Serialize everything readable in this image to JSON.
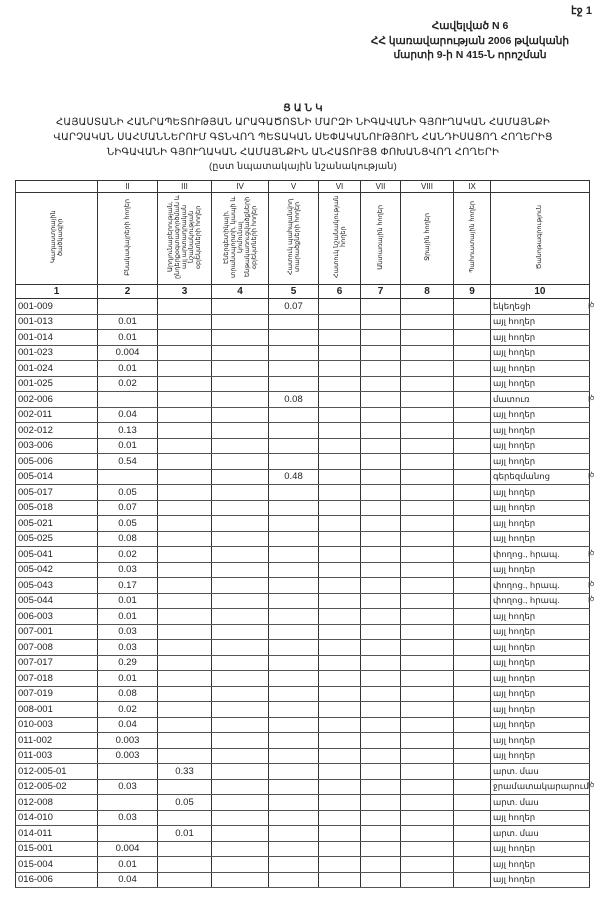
{
  "page_number": "էջ 1",
  "annex": {
    "line1": "Հավելված N 6",
    "line2": "ՀՀ կառավարության 2006 թվականի",
    "line3": "մարտի 9-ի N 415-Ն որոշման"
  },
  "title": {
    "heading": "Ց Ա Ն Կ",
    "line1": "ՀԱՅԱՍՏԱՆԻ ՀԱՆՐԱՊԵՏՈՒԹՅԱՆ ԱՐԱԳԱԾՈՏՆԻ ՄԱՐԶԻ ՆԻԳԱՎԱՆԻ ԳՅՈՒՂԱԿԱՆ ՀԱՄԱՅՆՔԻ",
    "line2": "ՎԱՐՉԱԿԱՆ ՍԱՀՄԱՆՆԵՐՈՒՄ ԳՏՆՎՈՂ ՊԵՏԱԿԱՆ ՍԵՓԱԿԱՆՈՒԹՅՈՒՆ ՀԱՆԴԻՍԱՑՈՂ ՀՈՂԵՐԻՑ",
    "line3": "ՆԻԳԱՎԱՆԻ ԳՅՈՒՂԱԿԱՆ ՀԱՄԱՅՆՔԻՆ ԱՆՀԱՏՈՒՅՑ ՓՈԽԱՆՑՎՈՂ ՀՈՂԵՐԻ",
    "subtitle": "(ըստ նպատակային նշանակության)"
  },
  "table": {
    "roman": [
      "",
      "II",
      "III",
      "IV",
      "V",
      "VI",
      "VII",
      "VIII",
      "IX",
      ""
    ],
    "headers": [
      "Կադաստրային ծածկագիր",
      "Բնակավայրերի հողեր",
      "Արդյունաբերության, ընդերքօգտագործման և այլ արտադրական նշանակության օբյեկտների հողեր",
      "Էներգետիկայի, տրանսպորտի, կապի և կոմունալ ենթակառուցվածքների օբյեկտների հողեր",
      "Հատուկ պահպանվող տարածքների հողեր",
      "Հատուկ նշանակության հողեր",
      "Անտառային հողեր",
      "Ջրային հողեր",
      "Պահուստային հողեր",
      "Ծանոթագրություն"
    ],
    "numbers": [
      "1",
      "2",
      "3",
      "4",
      "5",
      "6",
      "7",
      "8",
      "9",
      "10"
    ],
    "rows": [
      {
        "code": "001-009",
        "c2": "",
        "c3": "",
        "c5": "0.07",
        "note": "եկեղեցի",
        "mark": "լծ"
      },
      {
        "code": "001-013",
        "c2": "0.01",
        "c3": "",
        "c5": "",
        "note": "այլ հողեր",
        "mark": ""
      },
      {
        "code": "001-014",
        "c2": "0.01",
        "c3": "",
        "c5": "",
        "note": "այլ հողեր",
        "mark": ""
      },
      {
        "code": "001-023",
        "c2": "0.004",
        "c3": "",
        "c5": "",
        "note": "այլ հողեր",
        "mark": ""
      },
      {
        "code": "001-024",
        "c2": "0.01",
        "c3": "",
        "c5": "",
        "note": "այլ հողեր",
        "mark": ""
      },
      {
        "code": "001-025",
        "c2": "0.02",
        "c3": "",
        "c5": "",
        "note": "այլ հողեր",
        "mark": ""
      },
      {
        "code": "002-006",
        "c2": "",
        "c3": "",
        "c5": "0.08",
        "note": "մատուռ",
        "mark": "լծ"
      },
      {
        "code": "002-011",
        "c2": "0.04",
        "c3": "",
        "c5": "",
        "note": "այլ հողեր",
        "mark": ""
      },
      {
        "code": "002-012",
        "c2": "0.13",
        "c3": "",
        "c5": "",
        "note": "այլ հողեր",
        "mark": ""
      },
      {
        "code": "003-006",
        "c2": "0.01",
        "c3": "",
        "c5": "",
        "note": "այլ հողեր",
        "mark": ""
      },
      {
        "code": "005-006",
        "c2": "0.54",
        "c3": "",
        "c5": "",
        "note": "այլ հողեր",
        "mark": ""
      },
      {
        "code": "005-014",
        "c2": "",
        "c3": "",
        "c5": "0.48",
        "note": "գերեզմանոց",
        "mark": "լծ"
      },
      {
        "code": "005-017",
        "c2": "0.05",
        "c3": "",
        "c5": "",
        "note": "այլ հողեր",
        "mark": ""
      },
      {
        "code": "005-018",
        "c2": "0.07",
        "c3": "",
        "c5": "",
        "note": "այլ հողեր",
        "mark": ""
      },
      {
        "code": "005-021",
        "c2": "0.05",
        "c3": "",
        "c5": "",
        "note": "այլ հողեր",
        "mark": ""
      },
      {
        "code": "005-025",
        "c2": "0.08",
        "c3": "",
        "c5": "",
        "note": "այլ հողեր",
        "mark": ""
      },
      {
        "code": "005-041",
        "c2": "0.02",
        "c3": "",
        "c5": "",
        "note": "փողոց., հրապ.",
        "mark": "լծ"
      },
      {
        "code": "005-042",
        "c2": "0.03",
        "c3": "",
        "c5": "",
        "note": "այլ հողեր",
        "mark": ""
      },
      {
        "code": "005-043",
        "c2": "0.17",
        "c3": "",
        "c5": "",
        "note": "փողոց., հրապ.",
        "mark": "լծ"
      },
      {
        "code": "005-044",
        "c2": "0.01",
        "c3": "",
        "c5": "",
        "note": "փողոց., հրապ.",
        "mark": "լծ"
      },
      {
        "code": "006-003",
        "c2": "0.01",
        "c3": "",
        "c5": "",
        "note": "այլ հողեր",
        "mark": ""
      },
      {
        "code": "007-001",
        "c2": "0.03",
        "c3": "",
        "c5": "",
        "note": "այլ հողեր",
        "mark": ""
      },
      {
        "code": "007-008",
        "c2": "0.03",
        "c3": "",
        "c5": "",
        "note": "այլ հողեր",
        "mark": ""
      },
      {
        "code": "007-017",
        "c2": "0.29",
        "c3": "",
        "c5": "",
        "note": "այլ հողեր",
        "mark": ""
      },
      {
        "code": "007-018",
        "c2": "0.01",
        "c3": "",
        "c5": "",
        "note": "այլ հողեր",
        "mark": ""
      },
      {
        "code": "007-019",
        "c2": "0.08",
        "c3": "",
        "c5": "",
        "note": "այլ հողեր",
        "mark": ""
      },
      {
        "code": "008-001",
        "c2": "0.02",
        "c3": "",
        "c5": "",
        "note": "այլ հողեր",
        "mark": ""
      },
      {
        "code": "010-003",
        "c2": "0.04",
        "c3": "",
        "c5": "",
        "note": "այլ հողեր",
        "mark": ""
      },
      {
        "code": "011-002",
        "c2": "0.003",
        "c3": "",
        "c5": "",
        "note": "այլ հողեր",
        "mark": ""
      },
      {
        "code": "011-003",
        "c2": "0.003",
        "c3": "",
        "c5": "",
        "note": "այլ հողեր",
        "mark": ""
      },
      {
        "code": "012-005-01",
        "c2": "",
        "c3": "0.33",
        "c5": "",
        "note": "արտ. մաս",
        "mark": ""
      },
      {
        "code": "012-005-02",
        "c2": "0.03",
        "c3": "",
        "c5": "",
        "note": "ջրամատակարարում",
        "mark": "լծ"
      },
      {
        "code": "012-008",
        "c2": "",
        "c3": "0.05",
        "c5": "",
        "note": "արտ. մաս",
        "mark": ""
      },
      {
        "code": "014-010",
        "c2": "0.03",
        "c3": "",
        "c5": "",
        "note": "այլ հողեր",
        "mark": ""
      },
      {
        "code": "014-011",
        "c2": "",
        "c3": "0.01",
        "c5": "",
        "note": "արտ. մաս",
        "mark": ""
      },
      {
        "code": "015-001",
        "c2": "0.004",
        "c3": "",
        "c5": "",
        "note": "այլ հողեր",
        "mark": ""
      },
      {
        "code": "015-004",
        "c2": "0.01",
        "c3": "",
        "c5": "",
        "note": "այլ հողեր",
        "mark": ""
      },
      {
        "code": "016-006",
        "c2": "0.04",
        "c3": "",
        "c5": "",
        "note": "այլ հողեր",
        "mark": ""
      }
    ]
  }
}
